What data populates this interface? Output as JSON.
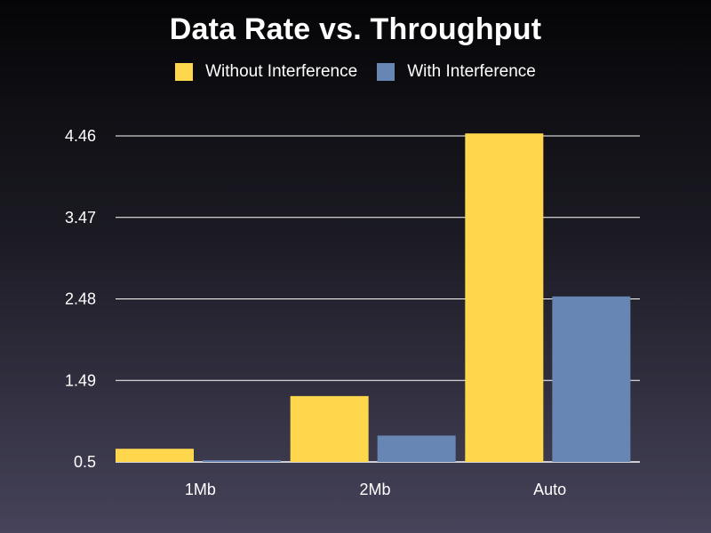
{
  "chart_data": {
    "type": "bar",
    "title": "Data Rate vs. Throughput",
    "categories": [
      "1Mb",
      "2Mb",
      "Auto"
    ],
    "series": [
      {
        "name": "Without Interference",
        "values": [
          0.66,
          1.3,
          4.49
        ],
        "color": "#ffd74c"
      },
      {
        "name": "With Interference",
        "values": [
          0.52,
          0.82,
          2.51
        ],
        "color": "#6886b4"
      }
    ],
    "yticks": [
      "0.5",
      "1.49",
      "2.48",
      "3.47",
      "4.46"
    ],
    "ylim": [
      0.5,
      4.46
    ],
    "grid": true,
    "legend_position": "top-center"
  }
}
